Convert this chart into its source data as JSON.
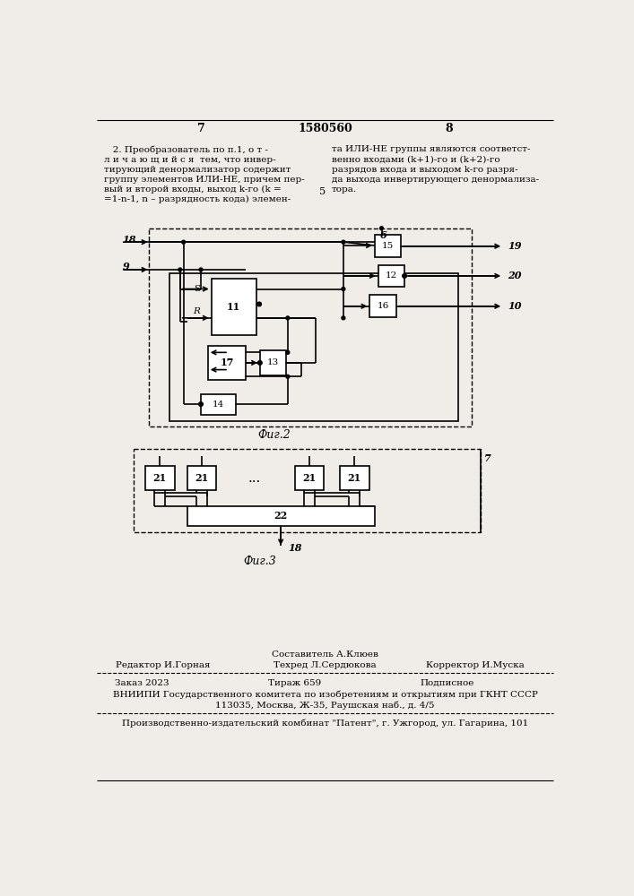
{
  "page_color": "#f0ede8",
  "header_num_left": "7",
  "header_center": "1580560",
  "header_num_right": "8",
  "fig2_caption": "Фиг.2",
  "fig3_caption": "Фиг.3",
  "left_text": [
    "   2. Преобразователь по п.1, о т -",
    "л и ч а ю щ и й с я  тем, что инвер-",
    "тирующий денормализатор содержит",
    "группу элементов ИЛИ-НЕ, причем пер-",
    "вый и второй входы, выход k-го (k =",
    "=1-n-1, n – разрядность кода) элемен-"
  ],
  "right_text": [
    "та ИЛИ-НЕ группы являются соответст-",
    "венно входами (k+1)-го и (k+2)-го",
    "разрядов входа и выходом k-го разря-",
    "да выхода инвертирующего денормализа-",
    "тора."
  ],
  "footer_editor": "Редактор И.Горная",
  "footer_composer": "Составитель А.Клюев",
  "footer_techred": "Техред Л.Сердюкова",
  "footer_corrector": "Корректор И.Муска",
  "footer_order": "Заказ 2023",
  "footer_tirazh": "Тираж 659",
  "footer_podpisnoe": "Подписное",
  "footer_vniipni": "ВНИИПИ Государственного комитета по изобретениям и открытиям при ГКНТ СССР",
  "footer_address": "113035, Москва, Ж-35, Раушская наб., д. 4/5",
  "footer_combine": "Производственно-издательский комбинат \"Патент\", г. Ужгород, ул. Гагарина, 101"
}
